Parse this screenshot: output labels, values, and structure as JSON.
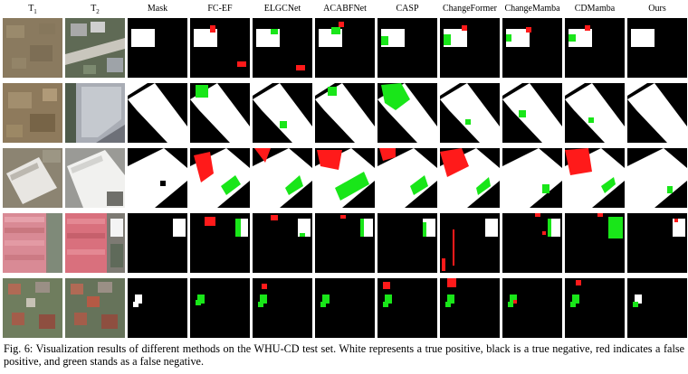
{
  "columns": [
    "T1",
    "T2",
    "Mask",
    "FC-EF",
    "ELGCNet",
    "ACABFNet",
    "CASP",
    "ChangeFormer",
    "ChangeMamba",
    "CDMamba",
    "Ours"
  ],
  "column_display": {
    "T1": {
      "base": "T",
      "sub": "1"
    },
    "T2": {
      "base": "T",
      "sub": "2"
    }
  },
  "legend_colors": {
    "true_positive": "#ffffff",
    "true_negative": "#000000",
    "false_positive": "#ff1a1a",
    "false_negative": "#19e619"
  },
  "rows": [
    {
      "scene": "bare-soil field with road and buildings"
    },
    {
      "scene": "dirt lot and flat-roof warehouse"
    },
    {
      "scene": "large white industrial building"
    },
    {
      "scene": "pink roof building with parking"
    },
    {
      "scene": "residential houses with red roofs"
    }
  ],
  "caption": {
    "label": "Fig. 6:",
    "text": "Visualization results of different methods on the WHU-CD test set. White represents a true positive, black is a true negative, red indicates a false positive, and green stands as a false negative."
  }
}
